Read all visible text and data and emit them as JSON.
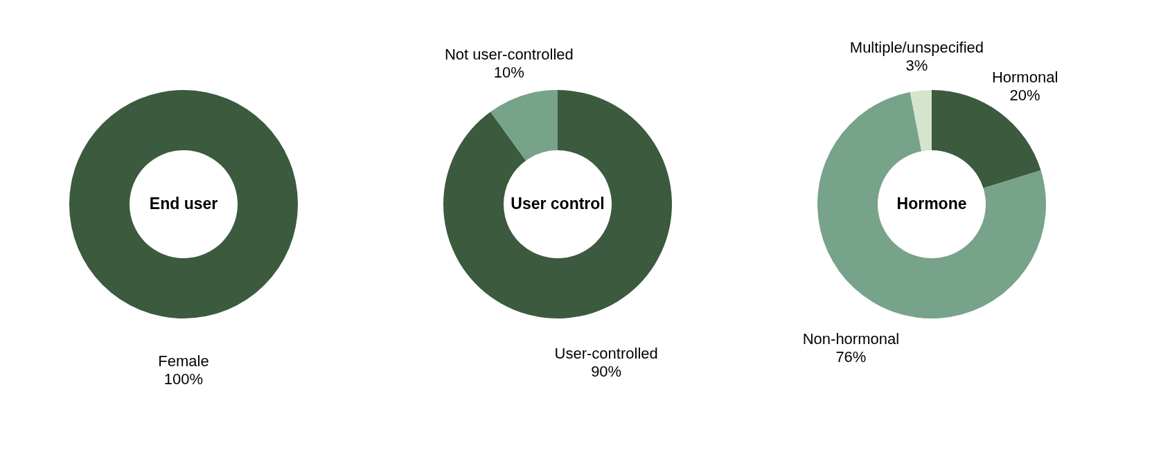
{
  "chart_data": [
    {
      "type": "donut",
      "title": "End user",
      "categories": [
        "Female"
      ],
      "values": [
        100
      ],
      "colors": [
        "#3b5a3e"
      ],
      "value_labels": [
        "100%"
      ]
    },
    {
      "type": "donut",
      "title": "User control",
      "categories": [
        "User-controlled",
        "Not user-controlled"
      ],
      "values": [
        90,
        10
      ],
      "colors": [
        "#3b5a3e",
        "#76a389"
      ],
      "value_labels": [
        "90%",
        "10%"
      ]
    },
    {
      "type": "donut",
      "title": "Hormone",
      "categories": [
        "Hormonal",
        "Non-hormonal",
        "Multiple/unspecified"
      ],
      "values": [
        20,
        76,
        3
      ],
      "colors": [
        "#3b5a3e",
        "#76a389",
        "#d5e4cc"
      ],
      "value_labels": [
        "20%",
        "76%",
        "3%"
      ]
    }
  ]
}
